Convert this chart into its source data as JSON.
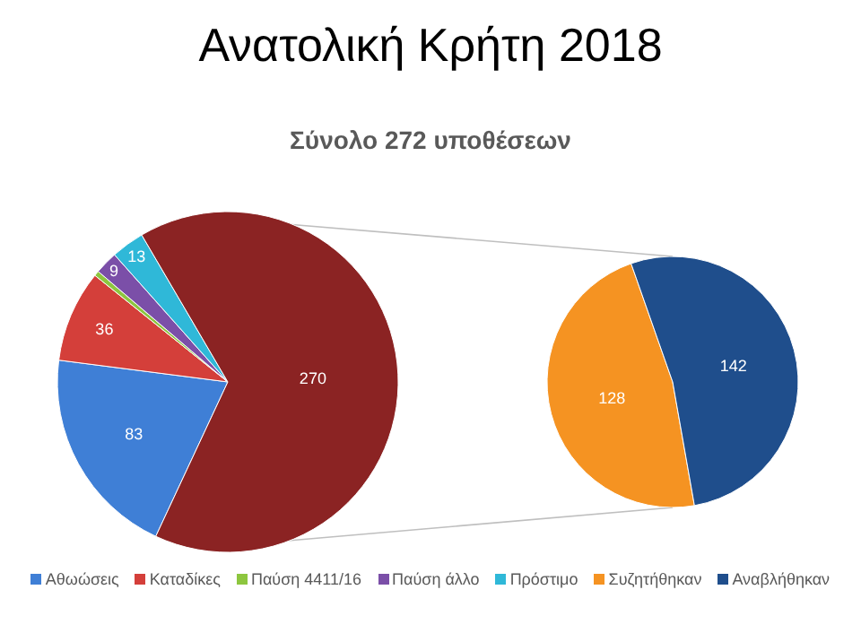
{
  "chart_data": [
    {
      "type": "pie",
      "title": "Ανατολική Κρήτη 2018",
      "subtitle": "Σύνολο 272 υποθέσεων",
      "categories": [
        "Αθωώσεις",
        "Καταδίκες",
        "Παύση 4411/16",
        "Παύση άλλο",
        "Πρόστιμο",
        null
      ],
      "values": [
        83,
        36,
        2,
        9,
        13,
        270
      ],
      "colors": [
        "#3f7fd6",
        "#d43f3a",
        "#8dc63f",
        "#7b4fa8",
        "#2fb8d8",
        "#8b2323"
      ],
      "data_labels": true,
      "value_labels": [
        "83",
        "36",
        null,
        "9",
        "13",
        "270"
      ],
      "legend": "bottom"
    },
    {
      "type": "pie",
      "categories": [
        "Συζητήθηκαν",
        "Αναβλήθηκαν"
      ],
      "values": [
        128,
        142
      ],
      "colors": [
        "#f59322",
        "#1f4e8c"
      ],
      "data_labels": true,
      "legend": "bottom"
    }
  ]
}
